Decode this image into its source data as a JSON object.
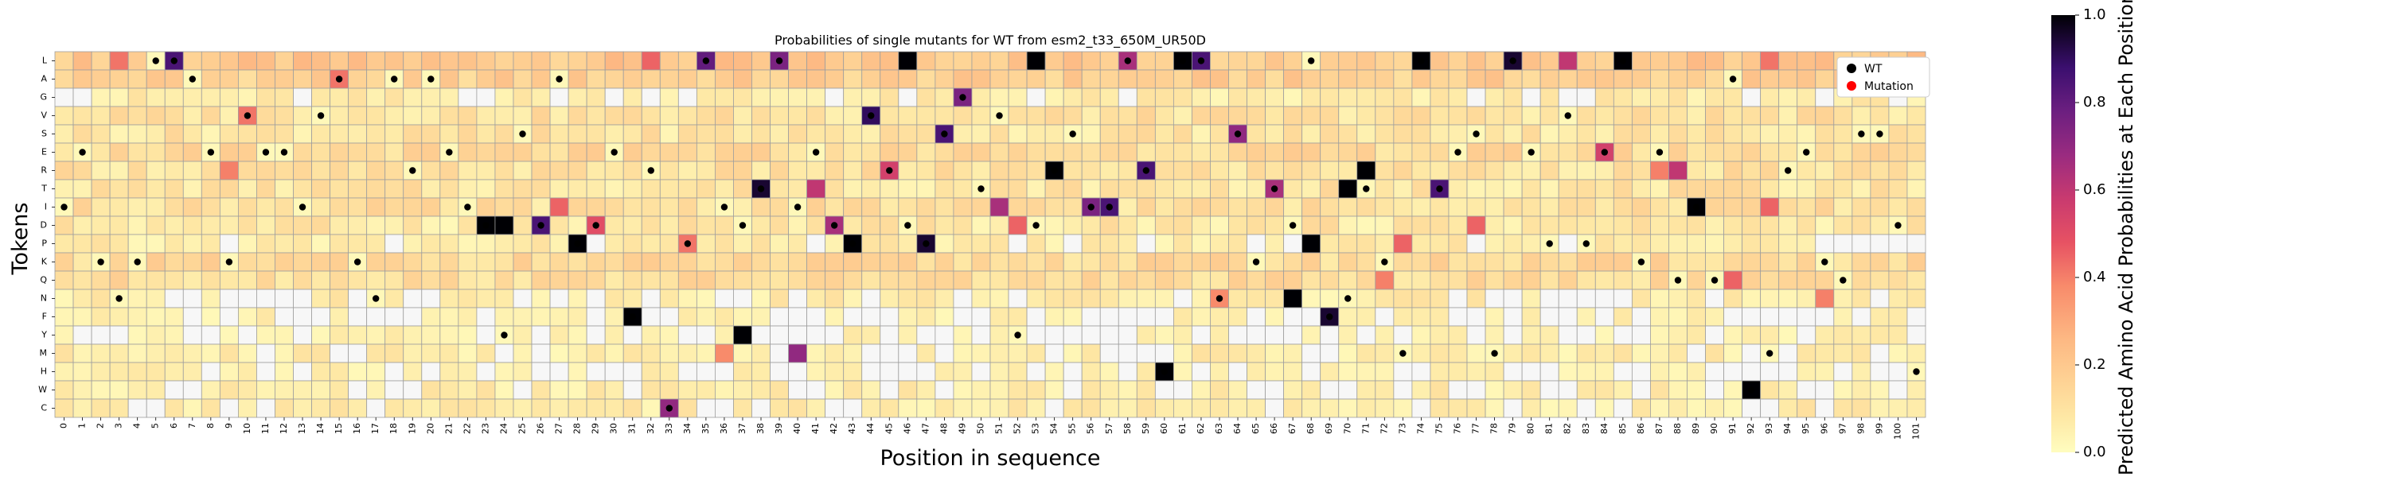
{
  "chart_data": {
    "type": "heatmap",
    "title": "Probabilities of single mutants for WT from esm2_t33_650M_UR50D",
    "xlabel": "Position in sequence",
    "ylabel": "Tokens",
    "colorbar_label": "Predicted Amino Acid Probabilities at Each Position",
    "colormap": "magma_r",
    "vmin": 0.0,
    "vmax": 1.0,
    "colorbar_ticks": [
      "0.0",
      "0.2",
      "0.4",
      "0.6",
      "0.8",
      "1.0"
    ],
    "grid": true,
    "legend_position": "top-right",
    "legend": [
      {
        "label": "WT",
        "color": "#000000"
      },
      {
        "label": "Mutation",
        "color": "#ff0000"
      }
    ],
    "tokens": [
      "L",
      "A",
      "G",
      "V",
      "S",
      "E",
      "R",
      "T",
      "I",
      "D",
      "P",
      "K",
      "Q",
      "N",
      "F",
      "Y",
      "M",
      "H",
      "W",
      "C"
    ],
    "positions": [
      "0",
      "1",
      "2",
      "3",
      "4",
      "5",
      "6",
      "7",
      "8",
      "9",
      "10",
      "11",
      "12",
      "13",
      "14",
      "15",
      "16",
      "17",
      "18",
      "19",
      "20",
      "21",
      "22",
      "23",
      "24",
      "25",
      "26",
      "27",
      "28",
      "29",
      "30",
      "31",
      "32",
      "33",
      "34",
      "35",
      "36",
      "37",
      "38",
      "39",
      "40",
      "41",
      "42",
      "43",
      "44",
      "45",
      "46",
      "47",
      "48",
      "49",
      "50",
      "51",
      "52",
      "53",
      "54",
      "55",
      "56",
      "57",
      "58",
      "59",
      "60",
      "61",
      "62",
      "63",
      "64",
      "65",
      "66",
      "67",
      "68",
      "69",
      "70",
      "71",
      "72",
      "73",
      "74",
      "75",
      "76",
      "77",
      "78",
      "79",
      "80",
      "81",
      "82",
      "83",
      "84",
      "85",
      "86",
      "87",
      "88",
      "89",
      "90",
      "91",
      "92",
      "93",
      "94",
      "95",
      "96",
      "97",
      "98",
      "99",
      "100",
      "101"
    ],
    "wt_tokens": [
      "I",
      "E",
      "K",
      "N",
      "K",
      "L",
      "L",
      "A",
      "E",
      "K",
      "V",
      "E",
      "E",
      "I",
      "V",
      "A",
      "K",
      "N",
      "A",
      "R",
      "A",
      "E",
      "I",
      "D",
      "Y",
      "S",
      "D",
      "A",
      "P",
      "D",
      "E",
      "F",
      "R",
      "C",
      "P",
      "L",
      "I",
      "D",
      "T",
      "L",
      "I",
      "E",
      "D",
      "P",
      "V",
      "R",
      "D",
      "P",
      "S",
      "G",
      "T",
      "V",
      "Y",
      "D",
      "R",
      "S",
      "I",
      "I",
      "L",
      "R",
      "H",
      "L",
      "L",
      "N",
      "S",
      "K",
      "T",
      "D",
      "L",
      "F",
      "N",
      "T",
      "K",
      "M",
      "L",
      "T",
      "E",
      "S",
      "M",
      "L",
      "E",
      "P",
      "V",
      "P",
      "E",
      "L",
      "K",
      "E",
      "Q",
      "I",
      "Q",
      "A",
      "W",
      "M",
      "R",
      "E",
      "K",
      "Q",
      "S",
      "S",
      "D",
      "H"
    ],
    "special_cells": [
      {
        "pos": 6,
        "token": "L",
        "value": 0.85
      },
      {
        "pos": 23,
        "token": "D",
        "value": 1.0
      },
      {
        "pos": 24,
        "token": "D",
        "value": 1.0
      },
      {
        "pos": 26,
        "token": "D",
        "value": 0.85
      },
      {
        "pos": 28,
        "token": "P",
        "value": 1.0
      },
      {
        "pos": 31,
        "token": "F",
        "value": 1.0
      },
      {
        "pos": 33,
        "token": "C",
        "value": 0.7
      },
      {
        "pos": 35,
        "token": "L",
        "value": 0.8
      },
      {
        "pos": 37,
        "token": "Y",
        "value": 1.0
      },
      {
        "pos": 38,
        "token": "T",
        "value": 0.95
      },
      {
        "pos": 39,
        "token": "L",
        "value": 0.75
      },
      {
        "pos": 40,
        "token": "M",
        "value": 0.7
      },
      {
        "pos": 41,
        "token": "T",
        "value": 0.6
      },
      {
        "pos": 42,
        "token": "D",
        "value": 0.65
      },
      {
        "pos": 43,
        "token": "P",
        "value": 1.0
      },
      {
        "pos": 44,
        "token": "V",
        "value": 0.9
      },
      {
        "pos": 45,
        "token": "R",
        "value": 0.55
      },
      {
        "pos": 46,
        "token": "L",
        "value": 1.0
      },
      {
        "pos": 47,
        "token": "P",
        "value": 0.95
      },
      {
        "pos": 48,
        "token": "S",
        "value": 0.85
      },
      {
        "pos": 49,
        "token": "G",
        "value": 0.75
      },
      {
        "pos": 51,
        "token": "I",
        "value": 0.65
      },
      {
        "pos": 53,
        "token": "L",
        "value": 1.0
      },
      {
        "pos": 54,
        "token": "R",
        "value": 1.0
      },
      {
        "pos": 56,
        "token": "I",
        "value": 0.75
      },
      {
        "pos": 57,
        "token": "I",
        "value": 0.85
      },
      {
        "pos": 58,
        "token": "L",
        "value": 0.65
      },
      {
        "pos": 59,
        "token": "R",
        "value": 0.85
      },
      {
        "pos": 60,
        "token": "H",
        "value": 1.0
      },
      {
        "pos": 61,
        "token": "L",
        "value": 1.0
      },
      {
        "pos": 62,
        "token": "L",
        "value": 0.85
      },
      {
        "pos": 64,
        "token": "S",
        "value": 0.7
      },
      {
        "pos": 66,
        "token": "T",
        "value": 0.65
      },
      {
        "pos": 67,
        "token": "N",
        "value": 1.0
      },
      {
        "pos": 68,
        "token": "P",
        "value": 1.0
      },
      {
        "pos": 69,
        "token": "F",
        "value": 0.95
      },
      {
        "pos": 70,
        "token": "T",
        "value": 1.0
      },
      {
        "pos": 71,
        "token": "R",
        "value": 1.0
      },
      {
        "pos": 74,
        "token": "L",
        "value": 1.0
      },
      {
        "pos": 75,
        "token": "T",
        "value": 0.85
      },
      {
        "pos": 79,
        "token": "L",
        "value": 0.95
      },
      {
        "pos": 82,
        "token": "L",
        "value": 0.6
      },
      {
        "pos": 84,
        "token": "E",
        "value": 0.55
      },
      {
        "pos": 85,
        "token": "L",
        "value": 1.0
      },
      {
        "pos": 88,
        "token": "R",
        "value": 0.6
      },
      {
        "pos": 89,
        "token": "I",
        "value": 1.0
      },
      {
        "pos": 92,
        "token": "W",
        "value": 1.0
      },
      {
        "pos": 57,
        "token": "I",
        "value": 0.85
      },
      {
        "pos": 3,
        "token": "L",
        "value": 0.42
      },
      {
        "pos": 10,
        "token": "V",
        "value": 0.42
      },
      {
        "pos": 15,
        "token": "A",
        "value": 0.42
      },
      {
        "pos": 27,
        "token": "I",
        "value": 0.45
      },
      {
        "pos": 29,
        "token": "D",
        "value": 0.5
      },
      {
        "pos": 32,
        "token": "L",
        "value": 0.45
      },
      {
        "pos": 34,
        "token": "P",
        "value": 0.42
      },
      {
        "pos": 36,
        "token": "M",
        "value": 0.38
      },
      {
        "pos": 52,
        "token": "D",
        "value": 0.45
      },
      {
        "pos": 63,
        "token": "N",
        "value": 0.38
      },
      {
        "pos": 73,
        "token": "P",
        "value": 0.45
      },
      {
        "pos": 77,
        "token": "D",
        "value": 0.45
      },
      {
        "pos": 87,
        "token": "R",
        "value": 0.4
      },
      {
        "pos": 93,
        "token": "I",
        "value": 0.45
      },
      {
        "pos": 93,
        "token": "L",
        "value": 0.42
      },
      {
        "pos": 96,
        "token": "N",
        "value": 0.4
      },
      {
        "pos": 91,
        "token": "Q",
        "value": 0.45
      },
      {
        "pos": 72,
        "token": "Q",
        "value": 0.4
      },
      {
        "pos": 9,
        "token": "R",
        "value": 0.4
      }
    ]
  }
}
